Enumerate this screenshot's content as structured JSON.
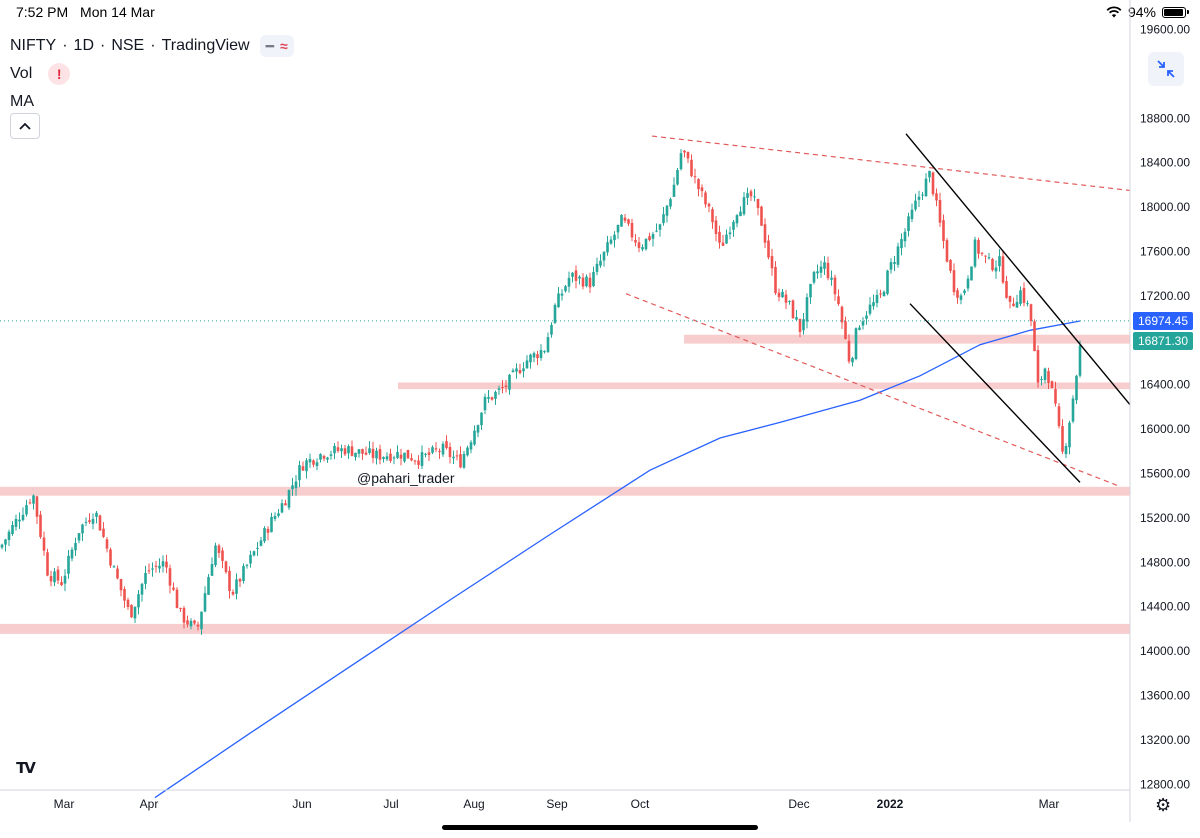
{
  "status_bar": {
    "time": "7:52 PM",
    "date": "Mon 14 Mar",
    "battery": "94%",
    "battery_level": 0.94
  },
  "header": {
    "symbol": "NIFTY",
    "interval": "1D",
    "exchange": "NSE",
    "source": "TradingView",
    "indicators": [
      "Vol",
      "MA"
    ],
    "warning_symbol": "!"
  },
  "watermark": "@pahari_trader",
  "colors": {
    "up": "#26a69a",
    "down": "#ef5350",
    "ma": "#2962ff",
    "zone": "#f7c4c6",
    "trend_dashed": "#e25a5a"
  },
  "chart_data": {
    "type": "candlestick",
    "ylim": [
      12600,
      19600
    ],
    "y_ticks": [
      "19600.00",
      "18800.00",
      "18400.00",
      "18000.00",
      "17600.00",
      "17200.00",
      "16800.00",
      "16400.00",
      "16000.00",
      "15600.00",
      "15200.00",
      "14800.00",
      "14400.00",
      "14000.00",
      "13600.00",
      "13200.00",
      "12800.00"
    ],
    "x_labels": [
      "Mar",
      "Apr",
      "Jun",
      "Jul",
      "Aug",
      "Sep",
      "Oct",
      "Dec",
      "2022",
      "Mar"
    ],
    "x_label_positions": [
      64,
      149,
      302,
      391,
      474,
      557,
      640,
      799,
      890,
      1049
    ],
    "price_markers": [
      {
        "label": "16974.45",
        "value": 16974.45,
        "color": "#2962ff"
      },
      {
        "label": "16871.30",
        "value": 16871.3,
        "color": "#26a69a"
      }
    ],
    "last_price": 16974.45,
    "support_zones": [
      {
        "from_x": 684,
        "value": 16810,
        "thickness": 80
      },
      {
        "from_x": 398,
        "value": 16390,
        "thickness": 60
      },
      {
        "from_x": 0,
        "value": 15440,
        "thickness": 80
      },
      {
        "from_x": 0,
        "value": 14200,
        "thickness": 90
      }
    ],
    "dashed_trendlines": [
      {
        "x1": 652,
        "y1": 18640,
        "x2": 1130,
        "y2": 18150
      },
      {
        "x1": 626,
        "y1": 17220,
        "x2": 1118,
        "y2": 15490
      }
    ],
    "solid_trendlines": [
      {
        "x1": 906,
        "y1": 18660,
        "x2": 1130,
        "y2": 16220
      },
      {
        "x1": 910,
        "y1": 17130,
        "x2": 1080,
        "y2": 15520
      }
    ],
    "ma_points": [
      [
        155,
        12680
      ],
      [
        250,
        13260
      ],
      [
        350,
        13860
      ],
      [
        450,
        14460
      ],
      [
        550,
        15050
      ],
      [
        650,
        15630
      ],
      [
        720,
        15920
      ],
      [
        780,
        16060
      ],
      [
        860,
        16260
      ],
      [
        920,
        16480
      ],
      [
        980,
        16760
      ],
      [
        1030,
        16890
      ],
      [
        1080,
        16974
      ]
    ],
    "anchors": [
      [
        0,
        14930
      ],
      [
        20,
        15230
      ],
      [
        33,
        15420
      ],
      [
        48,
        14700
      ],
      [
        62,
        14620
      ],
      [
        78,
        15080
      ],
      [
        95,
        15270
      ],
      [
        112,
        14780
      ],
      [
        130,
        14320
      ],
      [
        147,
        14720
      ],
      [
        165,
        14800
      ],
      [
        180,
        14330
      ],
      [
        197,
        14180
      ],
      [
        215,
        14960
      ],
      [
        232,
        14520
      ],
      [
        250,
        14820
      ],
      [
        268,
        15120
      ],
      [
        286,
        15380
      ],
      [
        302,
        15680
      ],
      [
        322,
        15780
      ],
      [
        345,
        15820
      ],
      [
        375,
        15760
      ],
      [
        400,
        15780
      ],
      [
        420,
        15730
      ],
      [
        442,
        15820
      ],
      [
        460,
        15700
      ],
      [
        470,
        15900
      ],
      [
        485,
        16250
      ],
      [
        505,
        16380
      ],
      [
        525,
        16610
      ],
      [
        545,
        16730
      ],
      [
        555,
        17100
      ],
      [
        570,
        17380
      ],
      [
        590,
        17320
      ],
      [
        605,
        17590
      ],
      [
        622,
        17880
      ],
      [
        640,
        17650
      ],
      [
        660,
        17820
      ],
      [
        674,
        18200
      ],
      [
        682,
        18530
      ],
      [
        698,
        18180
      ],
      [
        712,
        17900
      ],
      [
        720,
        17620
      ],
      [
        738,
        18000
      ],
      [
        752,
        18100
      ],
      [
        762,
        17850
      ],
      [
        775,
        17280
      ],
      [
        790,
        17100
      ],
      [
        800,
        16900
      ],
      [
        815,
        17400
      ],
      [
        825,
        17480
      ],
      [
        838,
        17150
      ],
      [
        850,
        16590
      ],
      [
        858,
        16940
      ],
      [
        868,
        17080
      ],
      [
        880,
        17180
      ],
      [
        890,
        17450
      ],
      [
        905,
        17780
      ],
      [
        918,
        18080
      ],
      [
        930,
        18300
      ],
      [
        942,
        17750
      ],
      [
        953,
        17300
      ],
      [
        962,
        17180
      ],
      [
        975,
        17650
      ],
      [
        990,
        17480
      ],
      [
        1000,
        17500
      ],
      [
        1010,
        17090
      ],
      [
        1020,
        17250
      ],
      [
        1030,
        17060
      ],
      [
        1038,
        16380
      ],
      [
        1046,
        16580
      ],
      [
        1055,
        16200
      ],
      [
        1063,
        15750
      ],
      [
        1068,
        16000
      ],
      [
        1075,
        16400
      ],
      [
        1082,
        16870
      ]
    ]
  }
}
